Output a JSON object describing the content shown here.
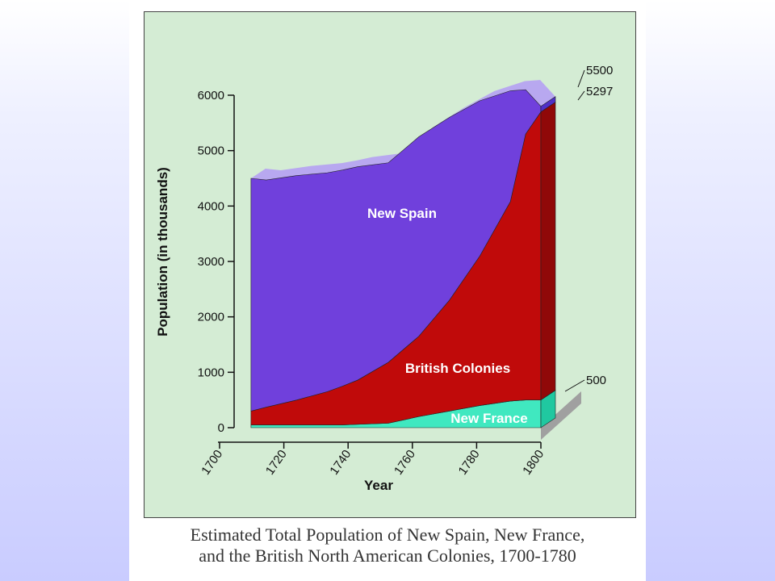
{
  "caption": {
    "line1": "Estimated Total Population of New Spain, New France,",
    "line2": "and the British North American Colonies, 1700-1780"
  },
  "chart_data": {
    "type": "area",
    "stacked": true,
    "style": "3d",
    "xlabel": "Year",
    "ylabel": "Population (in thousands)",
    "x_ticks": [
      "1700",
      "1720",
      "1740",
      "1760",
      "1780",
      "1800"
    ],
    "y_ticks": [
      "0",
      "1000",
      "2000",
      "3000",
      "4000",
      "5000",
      "6000"
    ],
    "ylim": [
      0,
      6000
    ],
    "x": [
      1705,
      1710,
      1720,
      1730,
      1735,
      1740,
      1750,
      1760,
      1770,
      1780,
      1790,
      1795,
      1800
    ],
    "series": [
      {
        "name": "New France",
        "color": "#40e8c0",
        "values": [
          50,
          50,
          50,
          50,
          50,
          60,
          80,
          200,
          300,
          400,
          480,
          500,
          500
        ]
      },
      {
        "name": "British Colonies",
        "color": "#c00a0a",
        "values": [
          250,
          320,
          450,
          600,
          700,
          800,
          1100,
          1450,
          2000,
          2700,
          3600,
          4800,
          5200
        ]
      },
      {
        "name": "New Spain",
        "color": "#7040dc",
        "values": [
          4200,
          4100,
          4050,
          3950,
          3900,
          3850,
          3600,
          3600,
          3300,
          2800,
          2000,
          800,
          100
        ]
      }
    ],
    "annotations": [
      "5500",
      "5297",
      "500"
    ],
    "colors": {
      "depth_top": "#b8a8f0",
      "depth_side": "#5030c8",
      "floor": "#a0a0a0"
    }
  }
}
